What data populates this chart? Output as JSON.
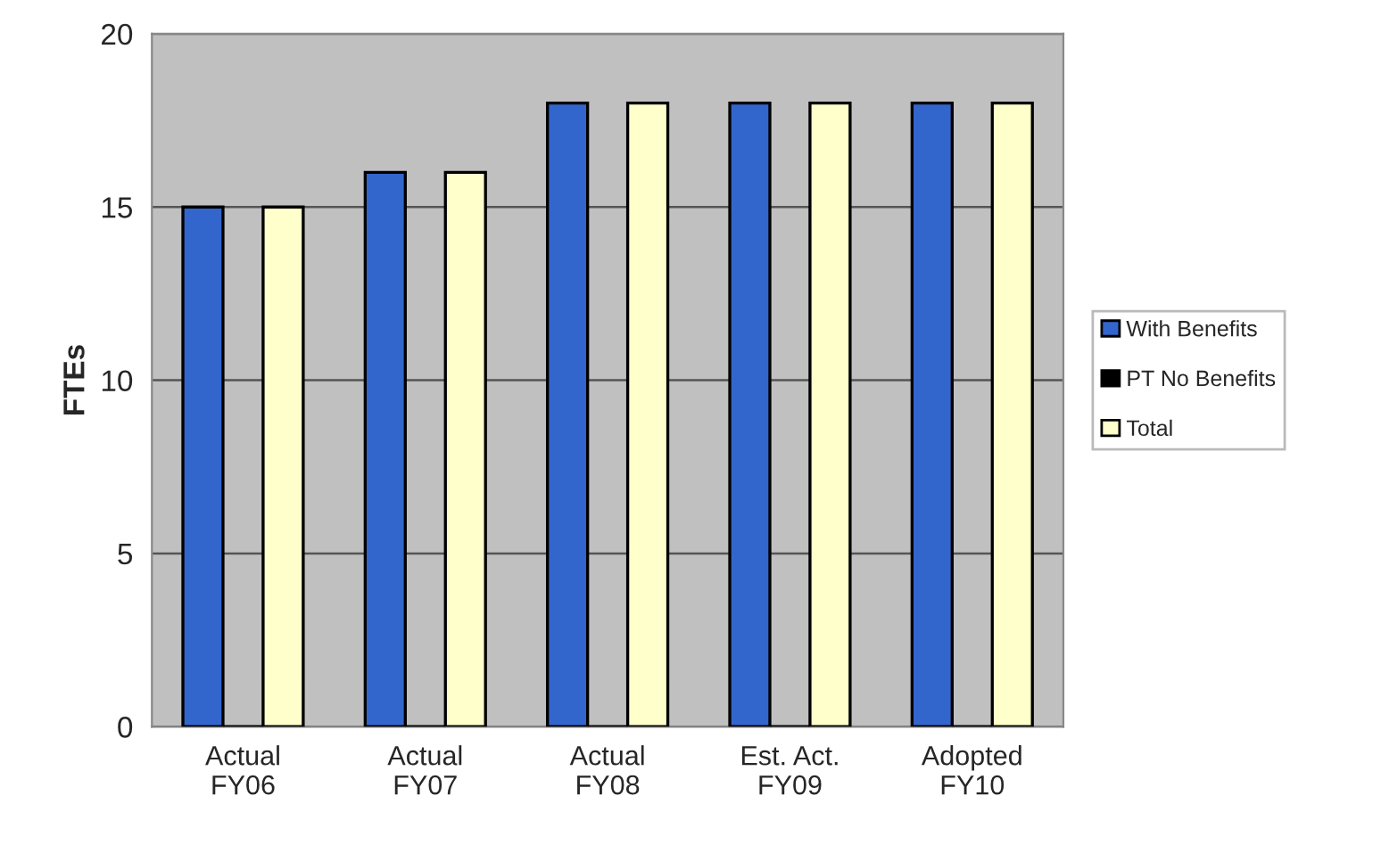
{
  "chart_data": {
    "type": "bar",
    "ylabel": "FTEs",
    "categories": [
      "Actual\nFY06",
      "Actual\nFY07",
      "Actual\nFY08",
      "Est. Act.\nFY09",
      "Adopted\nFY10"
    ],
    "series": [
      {
        "name": "With Benefits",
        "color": "#3366cc",
        "values": [
          15,
          16,
          18,
          18,
          18
        ]
      },
      {
        "name": "PT No Benefits",
        "color": "#000000",
        "values": [
          0,
          0,
          0,
          0,
          0
        ]
      },
      {
        "name": "Total",
        "color": "#ffffcc",
        "values": [
          15,
          16,
          18,
          18,
          18
        ]
      }
    ],
    "ylim": [
      0,
      20
    ],
    "yticks": [
      0,
      5,
      10,
      15,
      20
    ],
    "grid": "y",
    "legend": "right"
  }
}
